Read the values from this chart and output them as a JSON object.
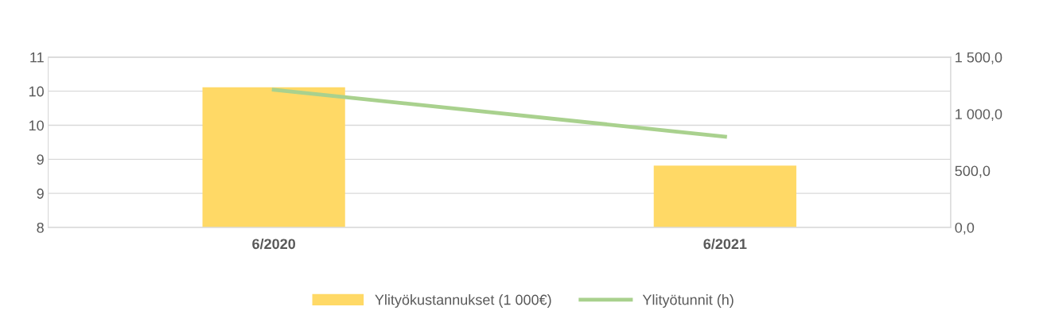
{
  "chart_data": {
    "type": "bar",
    "categories": [
      "6/2020",
      "6/2021"
    ],
    "series": [
      {
        "name": "Ylityökustannukset (1 000€)",
        "color": "#ffd966",
        "values": [
          10.47,
          9.09
        ]
      },
      {
        "name": "Ylityötunnit (h)",
        "type": "line",
        "axis": "y2",
        "color": "#a9d18e",
        "values": [
          1213,
          799
        ]
      }
    ],
    "ylim": [
      8,
      11
    ],
    "yticks": [
      8,
      {
        "value": 8.6,
        "label": "9"
      },
      {
        "value": 9.2,
        "label": "9"
      },
      {
        "value": 9.8,
        "label": "10"
      },
      {
        "value": 10.4,
        "label": "10"
      },
      11
    ],
    "y2lim": [
      0,
      1500
    ],
    "y2ticks": [
      {
        "value": 0,
        "label": "0,0"
      },
      {
        "value": 500,
        "label": "500,0"
      },
      {
        "value": 1000,
        "label": "1 000,0"
      },
      {
        "value": 1500,
        "label": "1 500,0"
      }
    ],
    "grid": "y",
    "legend": "bottom",
    "marker": "none",
    "line_style": "solid"
  }
}
